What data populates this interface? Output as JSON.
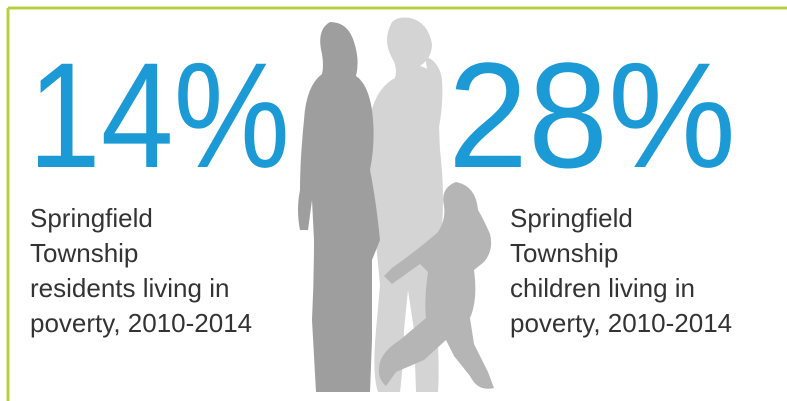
{
  "stats": [
    {
      "figure": "14%",
      "caption_lines": [
        "Springfield",
        "Township",
        "residents living in",
        "poverty, 2010-2014"
      ]
    },
    {
      "figure": "28%",
      "caption_lines": [
        "Springfield",
        "Township",
        "children living in",
        "poverty, 2010-2014"
      ]
    }
  ]
}
